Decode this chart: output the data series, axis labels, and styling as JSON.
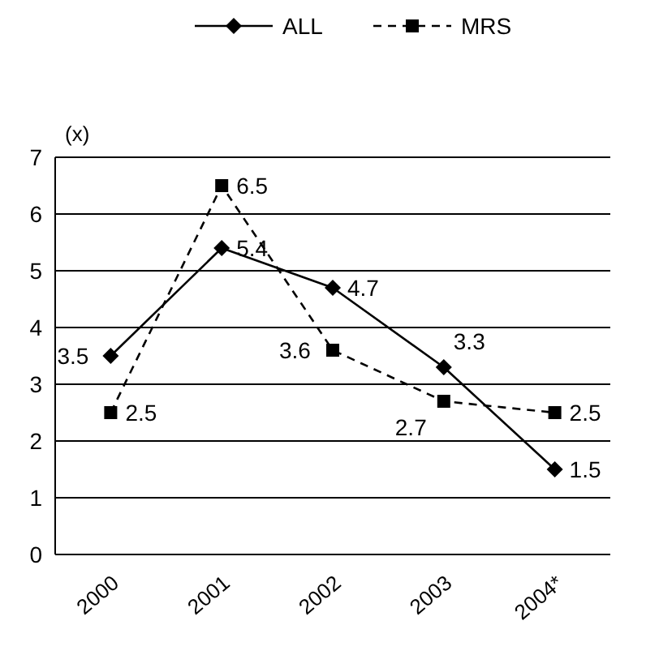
{
  "chart_data": {
    "type": "line",
    "ylabel": "(x)",
    "categories": [
      "2000",
      "2001",
      "2002",
      "2003",
      "2004*"
    ],
    "series": [
      {
        "name": "ALL",
        "color": "#000000",
        "values": [
          3.5,
          5.4,
          4.7,
          3.3,
          1.5
        ],
        "marker": "diamond",
        "line_style": "solid"
      },
      {
        "name": "MRS",
        "color": "#000000",
        "values": [
          2.5,
          6.5,
          3.6,
          2.7,
          2.5
        ],
        "marker": "square",
        "line_style": "dashed"
      }
    ],
    "ylim": [
      0,
      7
    ],
    "yticks": [
      0,
      1,
      2,
      3,
      4,
      5,
      6,
      7
    ],
    "grid": "y",
    "legend": "top",
    "data_labels": true
  }
}
